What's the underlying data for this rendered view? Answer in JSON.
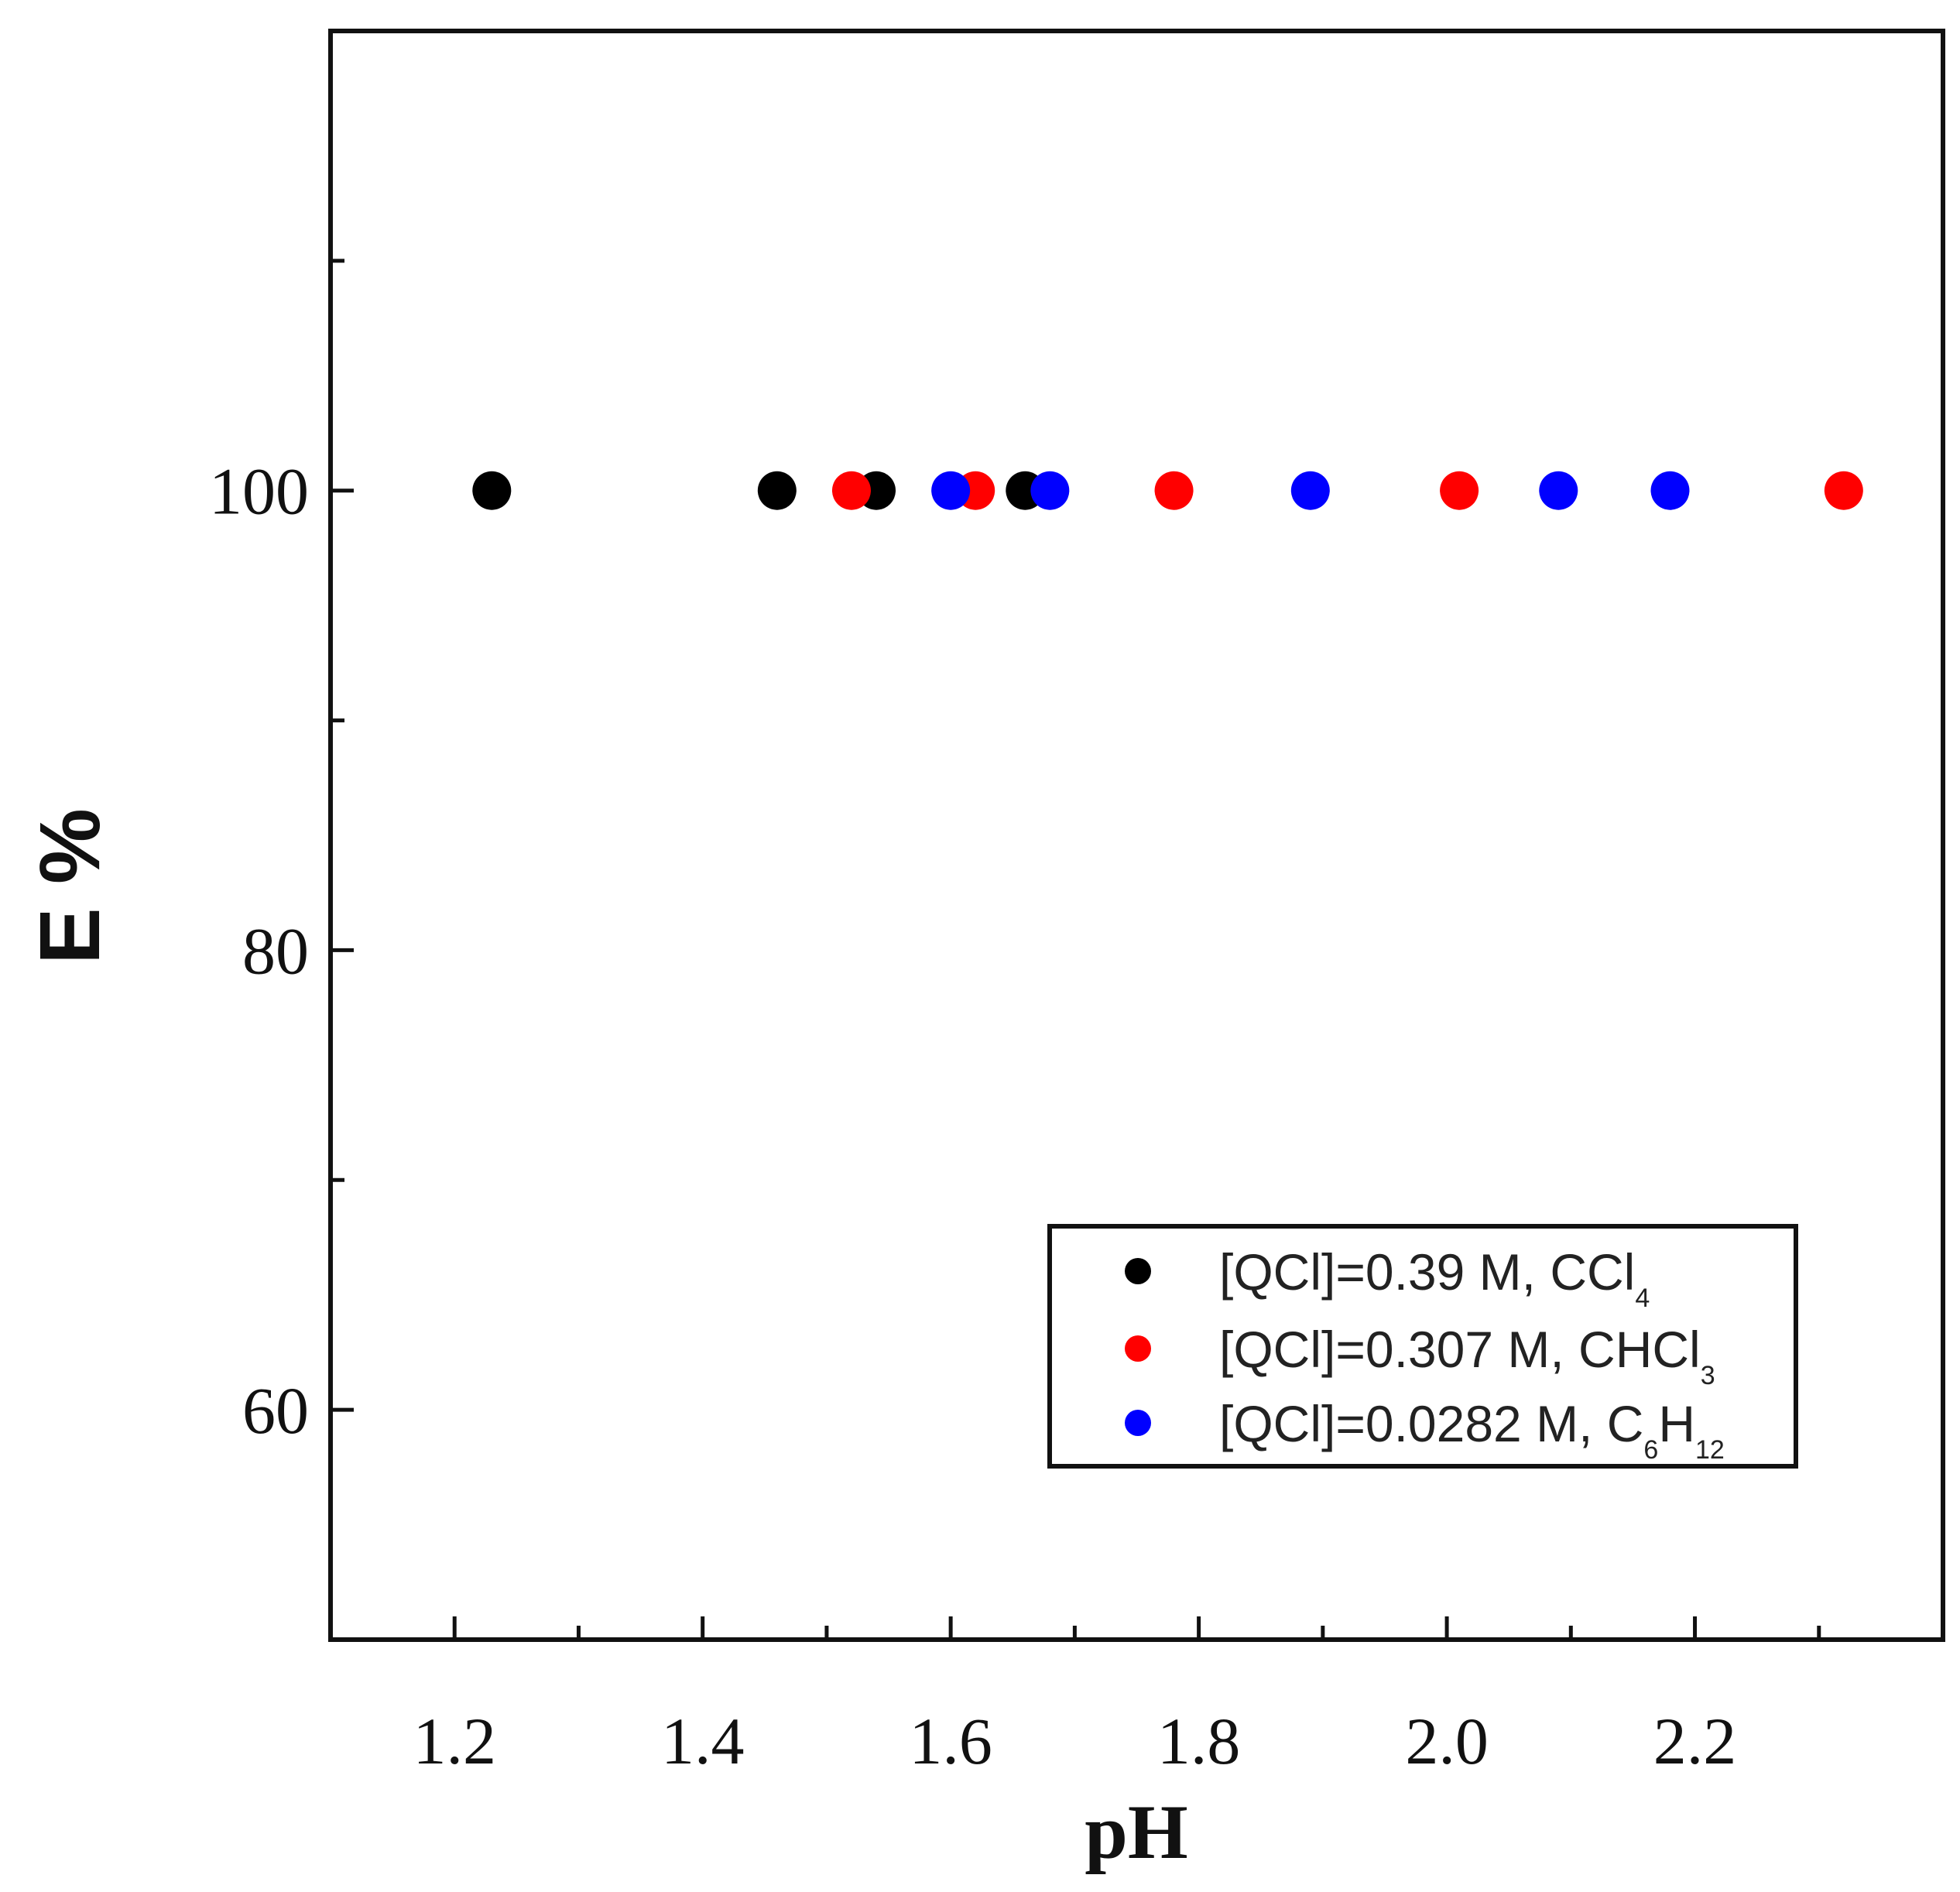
{
  "chart_data": {
    "type": "scatter",
    "title": "",
    "xlabel": "pH",
    "ylabel": "E %",
    "xlim": [
      1.1,
      2.4
    ],
    "ylim": [
      50,
      120
    ],
    "x_ticks": [
      {
        "value": 1.2,
        "label": "1.2"
      },
      {
        "value": 1.4,
        "label": "1.4"
      },
      {
        "value": 1.6,
        "label": "1.6"
      },
      {
        "value": 1.8,
        "label": "1.8"
      },
      {
        "value": 2.0,
        "label": "2.0"
      },
      {
        "value": 2.2,
        "label": "2.2"
      }
    ],
    "x_minor_ticks": [
      1.3,
      1.5,
      1.7,
      1.9,
      2.1,
      2.3
    ],
    "y_ticks": [
      {
        "value": 60,
        "label": "60"
      },
      {
        "value": 80,
        "label": "80"
      },
      {
        "value": 100,
        "label": "100"
      }
    ],
    "y_minor_ticks": [
      70,
      90,
      110
    ],
    "grid": false,
    "legend_position": "bottom-right",
    "series": [
      {
        "legend": {
          "main": "[QCl]=0.39 M, CCl",
          "sub": "4"
        },
        "color": "#000000",
        "x": [
          1.23,
          1.46,
          1.54,
          1.66
        ],
        "y": [
          100,
          100,
          100,
          100
        ]
      },
      {
        "legend": {
          "main": "[QCl]=0.307 M, CHCl",
          "sub": "3"
        },
        "color": "#ff0000",
        "x": [
          1.52,
          1.62,
          1.78,
          2.01,
          2.32
        ],
        "y": [
          100,
          100,
          100,
          100,
          100
        ]
      },
      {
        "legend": {
          "main": "[QCl]=0.0282 M, C",
          "sub": "6",
          "main2": "H",
          "sub2": "12"
        },
        "color": "#0000ff",
        "x": [
          1.6,
          1.68,
          1.89,
          2.09,
          2.18
        ],
        "y": [
          100,
          100,
          100,
          100,
          100
        ]
      }
    ]
  }
}
